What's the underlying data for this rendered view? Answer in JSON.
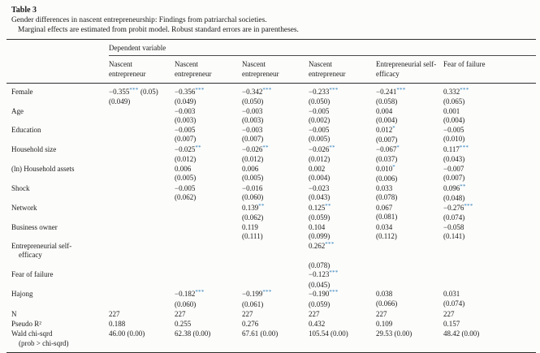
{
  "caption": {
    "title": "Table 3",
    "line1": "Gender differences in nascent entrepreneurship: Findings from patriarchal societies.",
    "line2": "Marginal effects are estimated from probit model. Robust standard errors are in parentheses."
  },
  "colors": {
    "significance_stars": "#2b7cb8",
    "rule": "#2e2e2e",
    "text": "#1b1b1b"
  },
  "table": {
    "group_header": "Dependent variable",
    "columns": [
      "Nascent\nentrepreneur",
      "Nascent\nentrepreneur",
      "Nascent\nentrepreneur",
      "Nascent\nentrepreneur",
      "Entrepreneurial self-\nefficacy",
      "Fear of failure"
    ],
    "rows": [
      {
        "label": "Female",
        "cells": [
          {
            "v": "−0.355",
            "st": "***",
            "t": "(0.05)",
            "se": "(0.049)"
          },
          {
            "v": "−0.356",
            "st": "***",
            "se": "(0.049)"
          },
          {
            "v": "−0.342",
            "st": "***",
            "se": "(0.050)"
          },
          {
            "v": "−0.233",
            "st": "***",
            "se": "(0.050)"
          },
          {
            "v": "−0.241",
            "st": "***",
            "se": "(0.058)"
          },
          {
            "v": "0.332",
            "st": "***",
            "se": "(0.065)"
          }
        ]
      },
      {
        "label": "Age",
        "cells": [
          null,
          {
            "v": "−0.003",
            "se": "(0.003)"
          },
          {
            "v": "−0.003",
            "se": "(0.003)"
          },
          {
            "v": "−0.005",
            "se": "(0.002)"
          },
          {
            "v": "0.004",
            "se": "(0.004)"
          },
          {
            "v": "0.001",
            "se": "(0.004)"
          }
        ]
      },
      {
        "label": "Education",
        "cells": [
          null,
          {
            "v": "−0.005",
            "se": "(0.007)"
          },
          {
            "v": "−0.003",
            "se": "(0.007)"
          },
          {
            "v": "−0.005",
            "se": "(0.005)"
          },
          {
            "v": "0.012",
            "st": "*",
            "se": "(0.007)"
          },
          {
            "v": "−0.005",
            "se": "(0.010)"
          }
        ]
      },
      {
        "label": "Household size",
        "cells": [
          null,
          {
            "v": "−0.025",
            "st": "**",
            "se": "(0.012)"
          },
          {
            "v": "−0.026",
            "st": "**",
            "se": "(0.012)"
          },
          {
            "v": "−0.026",
            "st": "**",
            "se": "(0.012)"
          },
          {
            "v": "−0.067",
            "st": "*",
            "se": "(0.037)"
          },
          {
            "v": "0.117",
            "st": "***",
            "se": "(0.043)"
          }
        ]
      },
      {
        "label": "(ln) Household assets",
        "cells": [
          null,
          {
            "v": "0.006",
            "se": "(0.005)"
          },
          {
            "v": "0.006",
            "se": "(0.005)"
          },
          {
            "v": "0.002",
            "se": "(0.004)"
          },
          {
            "v": "0.010",
            "st": "*",
            "se": "(0.006)"
          },
          {
            "v": "−0.007",
            "se": "(0.007)"
          }
        ]
      },
      {
        "label": "Shock",
        "cells": [
          null,
          {
            "v": "−0.005",
            "se": "(0.062)"
          },
          {
            "v": "−0.016",
            "se": "(0.060)"
          },
          {
            "v": "−0.023",
            "se": "(0.043)"
          },
          {
            "v": "0.033",
            "se": "(0.078)"
          },
          {
            "v": "0.096",
            "st": "**",
            "se": "(0.048)"
          }
        ]
      },
      {
        "label": "Network",
        "cells": [
          null,
          null,
          {
            "v": "0.139",
            "st": "**",
            "se": "(0.062)"
          },
          {
            "v": "0.125",
            "st": "**",
            "se": "(0.059)"
          },
          {
            "v": "0.067",
            "se": "(0.081)"
          },
          {
            "v": "−0.276",
            "st": "***",
            "se": "(0.074)"
          }
        ]
      },
      {
        "label": "Business owner",
        "cells": [
          null,
          null,
          {
            "v": "0.119",
            "se": "(0.111)"
          },
          {
            "v": "0.104",
            "se": "(0.099)"
          },
          {
            "v": "0.034",
            "se": "(0.112)"
          },
          {
            "v": "−0.058",
            "se": "(0.141)"
          }
        ]
      },
      {
        "label": "Entrepreneurial self-",
        "label2": "efficacy",
        "cells": [
          null,
          null,
          null,
          {
            "v": "0.262",
            "st": "***",
            "se": "(0.078)",
            "gap": true
          },
          null,
          null
        ]
      },
      {
        "label": "Fear of failure",
        "cells": [
          null,
          null,
          null,
          {
            "v": "−0.123",
            "st": "***",
            "se": "(0.045)"
          },
          null,
          null
        ]
      },
      {
        "label": "Hajong",
        "cells": [
          null,
          {
            "v": "−0.182",
            "st": "***",
            "se": "(0.060)"
          },
          {
            "v": "−0.199",
            "st": "***",
            "se": "(0.061)"
          },
          {
            "v": "−0.190",
            "st": "***",
            "se": "(0.059)"
          },
          {
            "v": "0.038",
            "se": "(0.066)"
          },
          {
            "v": "0.031",
            "se": "(0.074)"
          }
        ]
      }
    ],
    "stats": [
      {
        "label": "N",
        "values": [
          "227",
          "227",
          "227",
          "227",
          "227",
          "227"
        ]
      },
      {
        "label": "Pseudo R²",
        "values": [
          "0.188",
          "0.255",
          "0.276",
          "0.432",
          "0.109",
          "0.157"
        ]
      },
      {
        "label": "Wald chi-sqrd",
        "label2": "(prob > chi-sqrd)",
        "values": [
          "46.00 (0.00)",
          "62.38 (0.00)",
          "67.61 (0.00)",
          "105.54 (0.00)",
          "29.53 (0.00)",
          "48.42 (0.00)"
        ]
      }
    ]
  }
}
